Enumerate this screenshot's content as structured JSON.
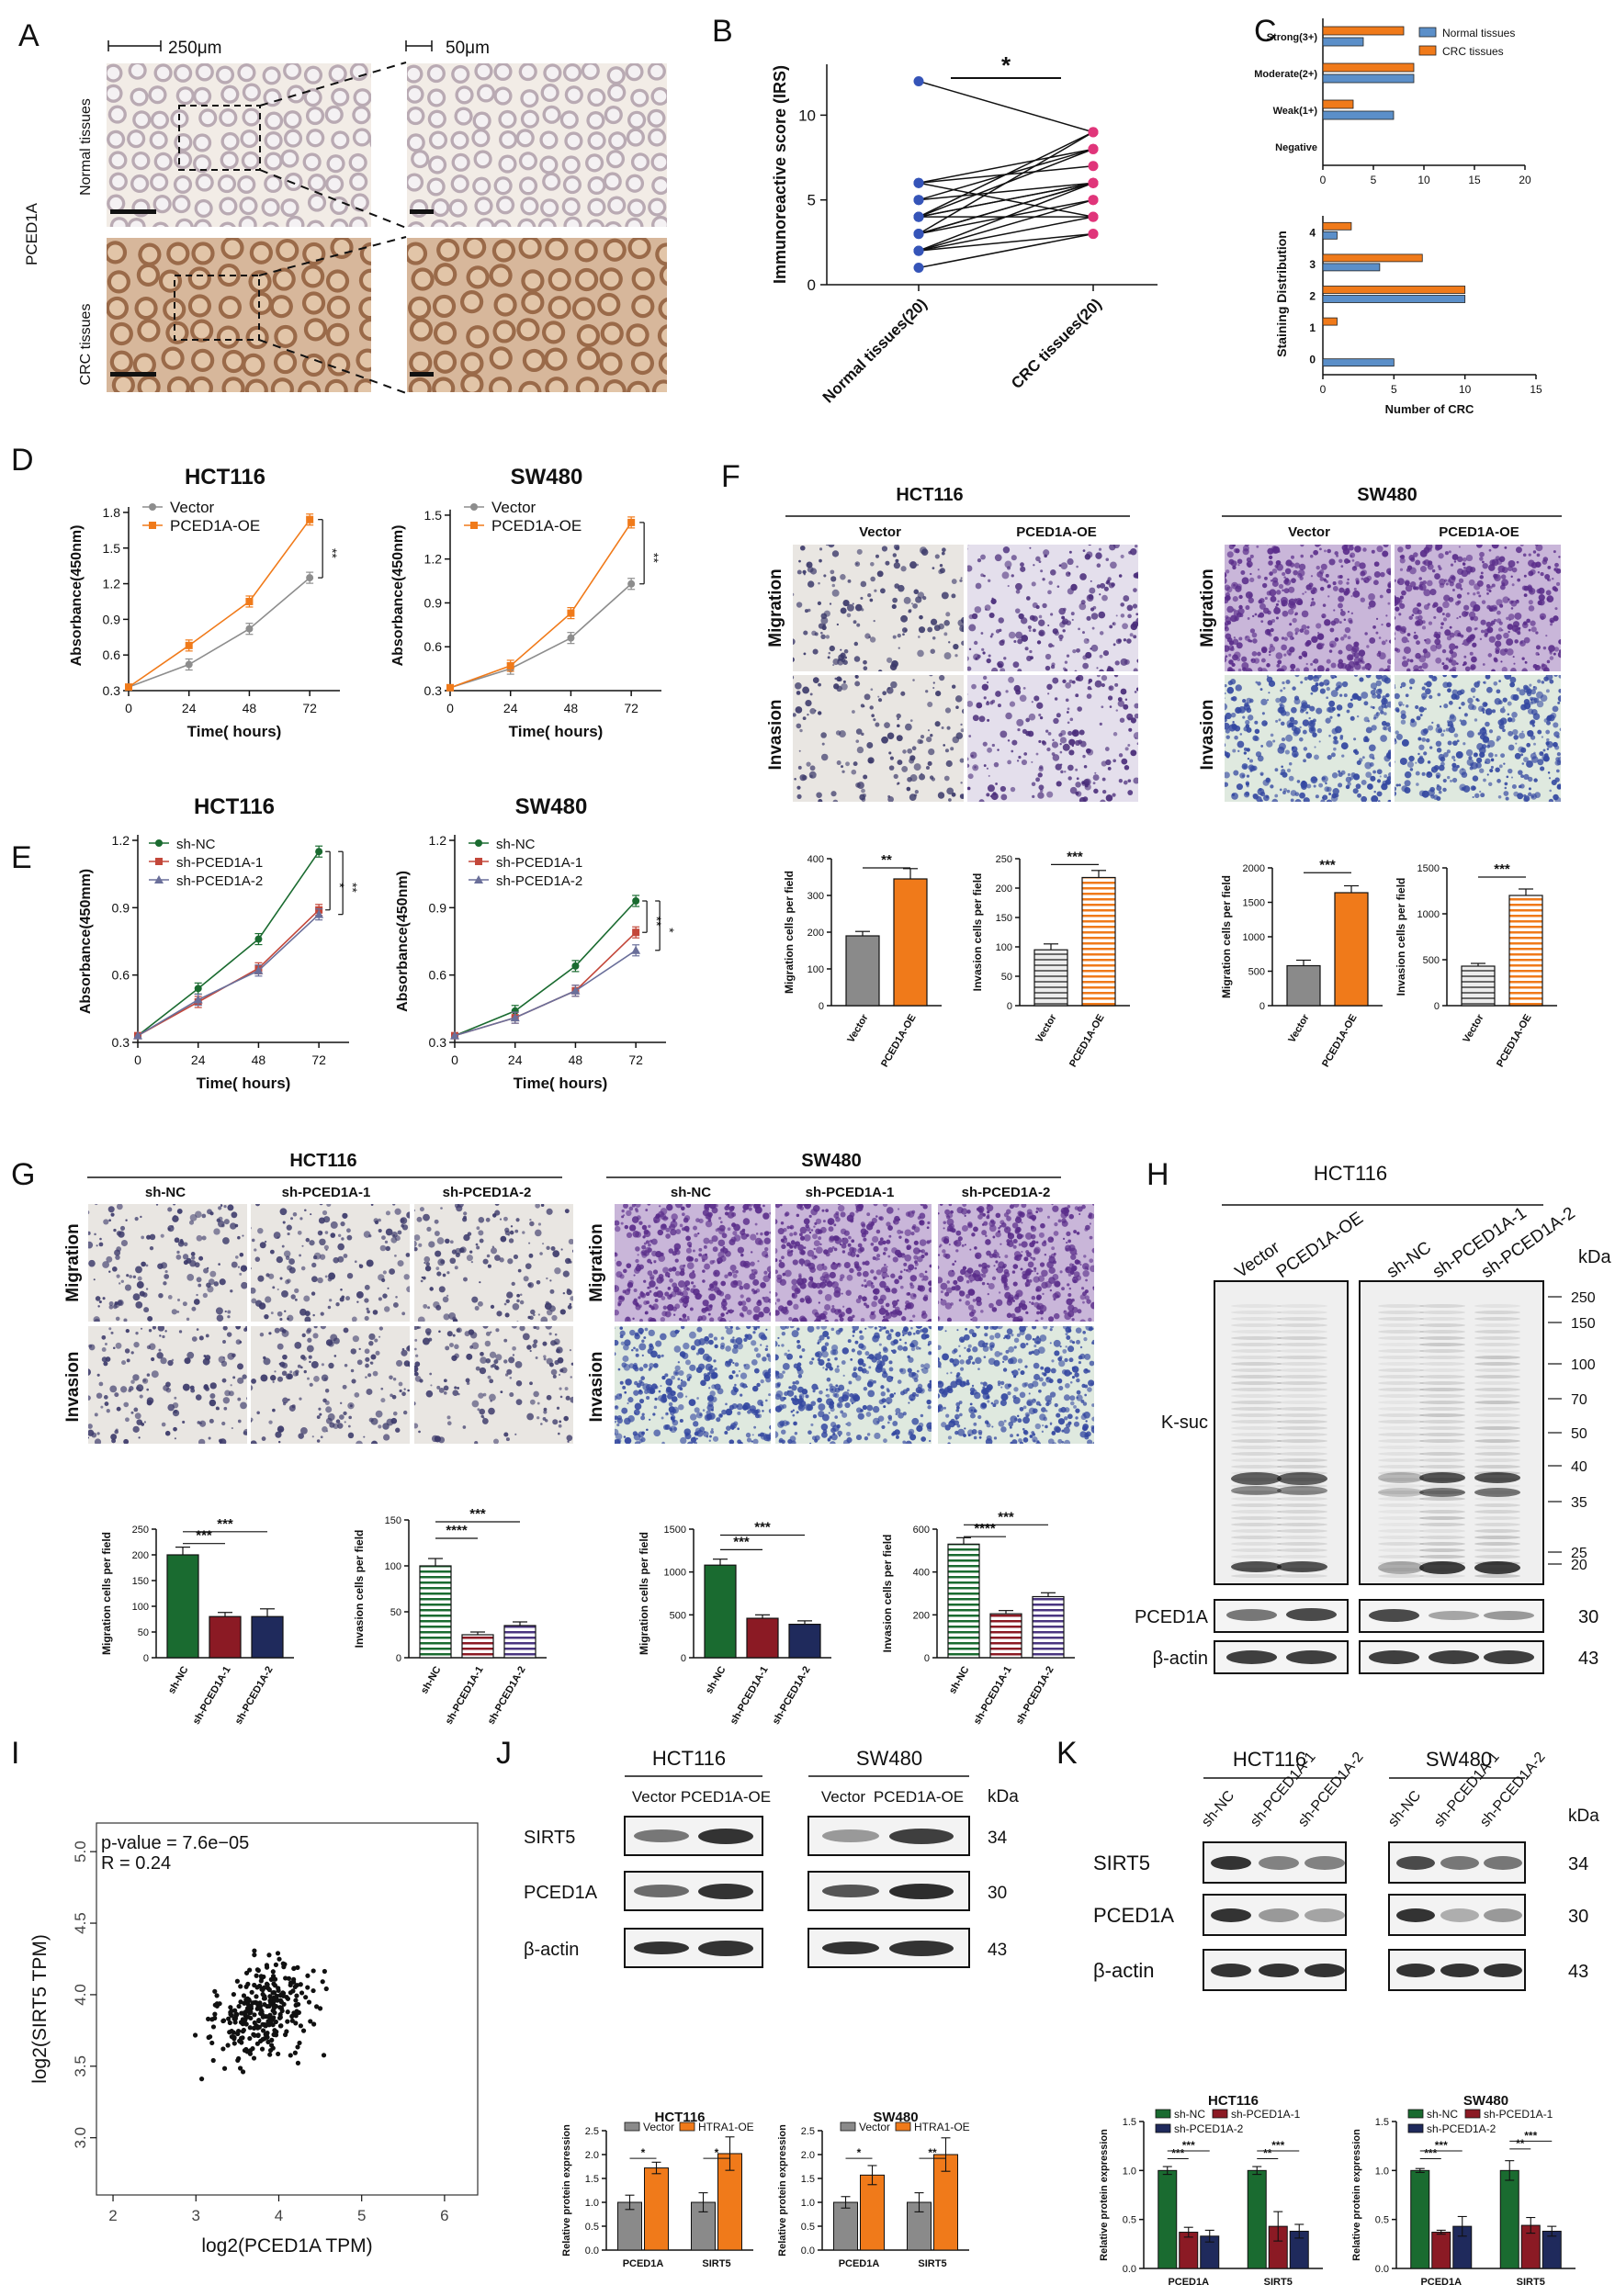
{
  "colors": {
    "orange": "#f07a1a",
    "blue": "#5b8fc9",
    "gray": "#8d8d8d",
    "green": "#1a6b30",
    "red": "#8b1a24",
    "navy": "#1f2a5c",
    "purple": "#4a3580",
    "pink": "#e0357a",
    "dotblue": "#3554b8",
    "plum": "#8a3c9a",
    "slate": "#6a6f9a",
    "softred": "#c3473a"
  },
  "panels": {
    "A": {
      "letter": "A",
      "scale1": "250μm",
      "scale2": "50μm",
      "gene": "PCED1A",
      "row1": "Normal tissues",
      "row2": "CRC tissues"
    },
    "F": {
      "letter": "F",
      "title1": "HCT116",
      "title2": "SW480",
      "col1": "Vector",
      "col2": "PCED1A-OE",
      "col3": "Vector",
      "col4": "PCED1A-OE",
      "row1": "Migration",
      "row2": "Invasion"
    },
    "G": {
      "letter": "G",
      "title1": "HCT116",
      "title2": "SW480",
      "col1": "sh-NC",
      "col2": "sh-PCED1A-1",
      "col3": "sh-PCED1A-2",
      "col4": "sh-NC",
      "col5": "sh-PCED1A-1",
      "col6": "sh-PCED1A-2",
      "row1": "Migration",
      "row2": "Invasion"
    },
    "H": {
      "letter": "H",
      "title": "HCT116",
      "lane1": "Vector",
      "lane2": "PCED1A-OE",
      "lane3": "sh-NC",
      "lane4": "sh-PCED1A-1",
      "lane5": "sh-PCED1A-2",
      "kda": "kDa",
      "ladder": [
        "250",
        "150",
        "100",
        "70",
        "50",
        "40",
        "35",
        "25",
        "20"
      ],
      "row1": "K-suc",
      "row2": "PCED1A",
      "row3": "β-actin",
      "mw2": "30",
      "mw3": "43"
    },
    "J": {
      "letter": "J",
      "title1": "HCT116",
      "title2": "SW480",
      "lane1": "Vector",
      "lane2": "PCED1A-OE",
      "lane3": "Vector",
      "lane4": "PCED1A-OE",
      "kda": "kDa",
      "row1": "SIRT5",
      "row2": "PCED1A",
      "row3": "β-actin",
      "mw1": "34",
      "mw2": "30",
      "mw3": "43"
    },
    "K": {
      "letter": "K",
      "title1": "HCT116",
      "title2": "SW480",
      "lane1": "sh-NC",
      "lane2": "sh-PCED1A-1",
      "lane3": "sh-PCED1A-2",
      "lane4": "sh-NC",
      "lane5": "sh-PCED1A-1",
      "lane6": "sh-PCED1A-2",
      "kda": "kDa",
      "row1": "SIRT5",
      "row2": "PCED1A",
      "row3": "β-actin",
      "mw1": "34",
      "mw2": "30",
      "mw3": "43"
    }
  },
  "chart_data": [
    {
      "id": "B",
      "letter": "B",
      "type": "scatter",
      "ylabel": "Immunoreactive score (IRS)",
      "categories": [
        "Normal tissues(20)",
        "CRC tissues(20)"
      ],
      "ylim": [
        0,
        13
      ],
      "yticks": [
        0,
        5,
        10
      ],
      "sig": "*",
      "pairs": [
        [
          12,
          9
        ],
        [
          6,
          8
        ],
        [
          6,
          7
        ],
        [
          5,
          8
        ],
        [
          4,
          6
        ],
        [
          4,
          8
        ],
        [
          4,
          4
        ],
        [
          3,
          6
        ],
        [
          3,
          5
        ],
        [
          3,
          6
        ],
        [
          2,
          4
        ],
        [
          2,
          3
        ],
        [
          2,
          6
        ],
        [
          1,
          3
        ],
        [
          4,
          9
        ],
        [
          5,
          6
        ],
        [
          3,
          9
        ],
        [
          6,
          4
        ],
        [
          2,
          5
        ],
        [
          4,
          6
        ]
      ]
    },
    {
      "id": "C1",
      "type": "bar",
      "orientation": "horizontal",
      "categories": [
        "Strong(3+)",
        "Moderate(2+)",
        "Weak(1+)",
        "Negative"
      ],
      "xlim": [
        0,
        20
      ],
      "xticks": [
        0,
        5,
        10,
        15,
        20
      ],
      "legend": [
        "Normal tissues",
        "CRC tissues"
      ],
      "legend_position": "top-right",
      "series": [
        {
          "name": "Normal tissues",
          "values": [
            4,
            9,
            7,
            0
          ]
        },
        {
          "name": "CRC tissues",
          "values": [
            8,
            9,
            3,
            0
          ]
        }
      ]
    },
    {
      "id": "C2",
      "letter": "C",
      "type": "bar",
      "orientation": "horizontal",
      "categories": [
        "4",
        "3",
        "2",
        "1",
        "0"
      ],
      "xlabel": "Number of CRC",
      "ylabel": "Staining Distribution",
      "xlim": [
        0,
        15
      ],
      "xticks": [
        0,
        5,
        10,
        15
      ],
      "series": [
        {
          "name": "Normal tissues",
          "values": [
            1,
            4,
            10,
            0,
            5
          ]
        },
        {
          "name": "CRC tissues",
          "values": [
            2,
            7,
            10,
            1,
            0
          ]
        }
      ]
    },
    {
      "id": "D1",
      "letter": "D",
      "type": "line",
      "title": "HCT116",
      "xlabel": "Time( hours)",
      "ylabel": "Absorbance(450nm)",
      "x": [
        0,
        24,
        48,
        72
      ],
      "xlim": [
        0,
        84
      ],
      "ylim": [
        0.3,
        1.9
      ],
      "yticks": [
        0.3,
        0.6,
        0.9,
        1.2,
        1.5,
        1.8
      ],
      "sig": [
        "**"
      ],
      "series": [
        {
          "name": "Vector",
          "values": [
            0.33,
            0.52,
            0.82,
            1.25
          ]
        },
        {
          "name": "PCED1A-OE",
          "values": [
            0.33,
            0.68,
            1.05,
            1.74
          ]
        }
      ]
    },
    {
      "id": "D2",
      "type": "line",
      "title": "SW480",
      "xlabel": "Time( hours)",
      "ylabel": "Absorbance(450nm)",
      "x": [
        0,
        24,
        48,
        72
      ],
      "xlim": [
        0,
        84
      ],
      "ylim": [
        0.3,
        1.6
      ],
      "yticks": [
        0.3,
        0.6,
        0.9,
        1.2,
        1.5
      ],
      "sig": [
        "**"
      ],
      "series": [
        {
          "name": "Vector",
          "values": [
            0.32,
            0.45,
            0.66,
            1.03
          ]
        },
        {
          "name": "PCED1A-OE",
          "values": [
            0.32,
            0.47,
            0.83,
            1.45
          ]
        }
      ]
    },
    {
      "id": "E1",
      "letter": "E",
      "type": "line",
      "title": "HCT116",
      "xlabel": "Time( hours)",
      "ylabel": "Absorbance(450mm)",
      "x": [
        0,
        24,
        48,
        72
      ],
      "xlim": [
        0,
        84
      ],
      "ylim": [
        0.3,
        1.2
      ],
      "yticks": [
        0.3,
        0.6,
        0.9,
        1.2
      ],
      "sig": [
        "*",
        "**"
      ],
      "series": [
        {
          "name": "sh-NC",
          "values": [
            0.33,
            0.54,
            0.76,
            1.15
          ]
        },
        {
          "name": "sh-PCED1A-1",
          "values": [
            0.33,
            0.48,
            0.63,
            0.89
          ]
        },
        {
          "name": "sh-PCED1A-2",
          "values": [
            0.33,
            0.49,
            0.62,
            0.87
          ]
        }
      ]
    },
    {
      "id": "E2",
      "type": "line",
      "title": "SW480",
      "xlabel": "Time( hours)",
      "ylabel": "Absorbance(450nm)",
      "x": [
        0,
        24,
        48,
        72
      ],
      "xlim": [
        0,
        84
      ],
      "ylim": [
        0.3,
        1.2
      ],
      "yticks": [
        0.3,
        0.6,
        0.9,
        1.2
      ],
      "sig": [
        "**",
        "*"
      ],
      "series": [
        {
          "name": "sh-NC",
          "values": [
            0.33,
            0.44,
            0.64,
            0.93
          ]
        },
        {
          "name": "sh-PCED1A-1",
          "values": [
            0.33,
            0.41,
            0.53,
            0.79
          ]
        },
        {
          "name": "sh-PCED1A-2",
          "values": [
            0.33,
            0.41,
            0.53,
            0.71
          ]
        }
      ]
    },
    {
      "id": "F1",
      "type": "bar",
      "ylabel": "Migration cells per field",
      "categories": [
        "Vector",
        "PCED1A-OE"
      ],
      "values": [
        190,
        345
      ],
      "errors": [
        12,
        28
      ],
      "ylim": [
        0,
        400
      ],
      "yticks": [
        0,
        100,
        200,
        300,
        400
      ],
      "sig": [
        "**"
      ]
    },
    {
      "id": "F2",
      "type": "bar",
      "ylabel": "Invasion cells per field",
      "categories": [
        "Vector",
        "PCED1A-OE"
      ],
      "values": [
        95,
        218
      ],
      "errors": [
        10,
        12
      ],
      "ylim": [
        0,
        250
      ],
      "yticks": [
        0,
        50,
        100,
        150,
        200,
        250
      ],
      "sig": [
        "***"
      ]
    },
    {
      "id": "F3",
      "type": "bar",
      "ylabel": "Migration cells per field",
      "categories": [
        "Vector",
        "PCED1A-OE"
      ],
      "values": [
        580,
        1640
      ],
      "errors": [
        80,
        100
      ],
      "ylim": [
        0,
        2000
      ],
      "yticks": [
        0,
        500,
        1000,
        1500,
        2000
      ],
      "sig": [
        "***"
      ]
    },
    {
      "id": "F4",
      "type": "bar",
      "ylabel": "Invasion cells per field",
      "categories": [
        "Vector",
        "PCED1A-OE"
      ],
      "values": [
        430,
        1200
      ],
      "errors": [
        30,
        70
      ],
      "ylim": [
        0,
        1500
      ],
      "yticks": [
        0,
        500,
        1000,
        1500
      ],
      "sig": [
        "***"
      ]
    },
    {
      "id": "G1",
      "type": "bar",
      "ylabel": "Migration cells per field",
      "categories": [
        "sh-NC",
        "sh-PCED1A-1",
        "sh-PCED1A-2"
      ],
      "values": [
        200,
        80,
        80
      ],
      "errors": [
        15,
        8,
        15
      ],
      "ylim": [
        0,
        250
      ],
      "yticks": [
        0,
        50,
        100,
        150,
        200,
        250
      ],
      "sig": [
        "***",
        "***"
      ]
    },
    {
      "id": "G2",
      "type": "bar",
      "ylabel": "Invasion cells per field",
      "categories": [
        "sh-NC",
        "sh-PCED1A-1",
        "sh-PCED1A-2"
      ],
      "values": [
        100,
        25,
        35
      ],
      "errors": [
        8,
        3,
        4
      ],
      "ylim": [
        0,
        150
      ],
      "yticks": [
        0,
        50,
        100,
        150
      ],
      "sig": [
        "****",
        "***"
      ]
    },
    {
      "id": "G3",
      "type": "bar",
      "ylabel": "Migration cells per field",
      "categories": [
        "sh-NC",
        "sh-PCED1A-1",
        "sh-PCED1A-2"
      ],
      "values": [
        1080,
        460,
        390
      ],
      "errors": [
        70,
        40,
        40
      ],
      "ylim": [
        0,
        1500
      ],
      "yticks": [
        0,
        500,
        1000,
        1500
      ],
      "sig": [
        "***",
        "***"
      ]
    },
    {
      "id": "G4",
      "type": "bar",
      "ylabel": "Invasion cells per field",
      "categories": [
        "sh-NC",
        "sh-PCED1A-1",
        "sh-PCED1A-2"
      ],
      "values": [
        530,
        205,
        285
      ],
      "errors": [
        30,
        15,
        18
      ],
      "ylim": [
        0,
        600
      ],
      "yticks": [
        0,
        200,
        400,
        600
      ],
      "sig": [
        "****",
        "***"
      ]
    },
    {
      "id": "I",
      "letter": "I",
      "type": "scatter",
      "xlabel": "log2(PCED1A TPM)",
      "ylabel": "log2(SIRT5 TPM)",
      "xlim": [
        1.8,
        6.4
      ],
      "ylim": [
        2.6,
        5.2
      ],
      "xticks": [
        2,
        3,
        4,
        5,
        6
      ],
      "yticks": [
        3.0,
        3.5,
        4.0,
        4.5,
        5.0
      ],
      "annotation": [
        "p-value = 7.6e−05",
        "R = 0.24"
      ],
      "n_points": 300
    },
    {
      "id": "J1",
      "type": "bar",
      "title": "HCT116",
      "ylabel": "Relative protein expression",
      "categories": [
        "PCED1A",
        "SIRT5"
      ],
      "legend": [
        "Vector",
        "HTRA1-OE"
      ],
      "ylim": [
        0,
        2.5
      ],
      "yticks": [
        0.0,
        0.5,
        1.0,
        1.5,
        2.0,
        2.5
      ],
      "series": [
        {
          "name": "Vector",
          "values": [
            1.0,
            1.0
          ],
          "errors": [
            0.15,
            0.2
          ]
        },
        {
          "name": "HTRA1-OE",
          "values": [
            1.72,
            2.02
          ],
          "errors": [
            0.12,
            0.35
          ]
        }
      ],
      "sig": [
        "*",
        "*"
      ]
    },
    {
      "id": "J2",
      "type": "bar",
      "title": "SW480",
      "ylabel": "Relative protein expression",
      "categories": [
        "PCED1A",
        "SIRT5"
      ],
      "legend": [
        "Vector",
        "HTRA1-OE"
      ],
      "ylim": [
        0,
        2.5
      ],
      "yticks": [
        0.0,
        0.5,
        1.0,
        1.5,
        2.0,
        2.5
      ],
      "series": [
        {
          "name": "Vector",
          "values": [
            1.0,
            1.0
          ],
          "errors": [
            0.12,
            0.2
          ]
        },
        {
          "name": "HTRA1-OE",
          "values": [
            1.57,
            2.0
          ],
          "errors": [
            0.2,
            0.35
          ]
        }
      ],
      "sig": [
        "*",
        "**"
      ]
    },
    {
      "id": "K1",
      "type": "bar",
      "title": "HCT116",
      "ylabel": "Relative protein expression",
      "categories": [
        "PCED1A",
        "SIRT5"
      ],
      "legend": [
        "sh-NC",
        "sh-PCED1A-1",
        "sh-PCED1A-2"
      ],
      "ylim": [
        0,
        1.5
      ],
      "yticks": [
        0.0,
        0.5,
        1.0,
        1.5
      ],
      "series": [
        {
          "name": "sh-NC",
          "values": [
            1.0,
            1.0
          ],
          "errors": [
            0.04,
            0.04
          ]
        },
        {
          "name": "sh-PCED1A-1",
          "values": [
            0.37,
            0.43
          ],
          "errors": [
            0.05,
            0.15
          ]
        },
        {
          "name": "sh-PCED1A-2",
          "values": [
            0.33,
            0.38
          ],
          "errors": [
            0.06,
            0.07
          ]
        }
      ],
      "sig": [
        "***",
        "***",
        "**",
        "***"
      ]
    },
    {
      "id": "K2",
      "type": "bar",
      "title": "SW480",
      "ylabel": "Relative protein expression",
      "categories": [
        "PCED1A",
        "SIRT5"
      ],
      "legend": [
        "sh-NC",
        "sh-PCED1A-1",
        "sh-PCED1A-2"
      ],
      "ylim": [
        0,
        1.5
      ],
      "yticks": [
        0.0,
        0.5,
        1.0,
        1.5
      ],
      "series": [
        {
          "name": "sh-NC",
          "values": [
            1.0,
            1.0
          ],
          "errors": [
            0.02,
            0.1
          ]
        },
        {
          "name": "sh-PCED1A-1",
          "values": [
            0.37,
            0.44
          ],
          "errors": [
            0.02,
            0.08
          ]
        },
        {
          "name": "sh-PCED1A-2",
          "values": [
            0.43,
            0.38
          ],
          "errors": [
            0.1,
            0.05
          ]
        }
      ],
      "sig": [
        "***",
        "***",
        "**",
        "***"
      ]
    }
  ]
}
